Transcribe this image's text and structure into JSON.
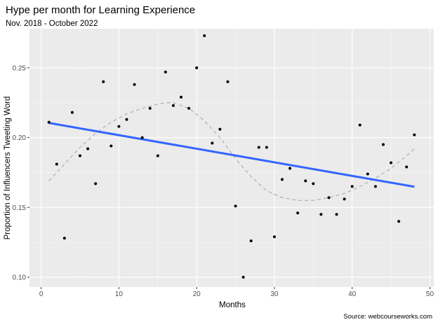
{
  "chart_data": {
    "type": "scatter",
    "title": "Hype per month for Learning Experience",
    "subtitle": "Nov. 2018 - October 2022",
    "xlabel": "Months",
    "ylabel": "Proportion of Influencers Tweeting Word",
    "caption": "Source: webcourseworks.com",
    "xlim": [
      -1.5,
      50.5
    ],
    "ylim": [
      0.093,
      0.278
    ],
    "x_ticks": [
      0,
      10,
      20,
      30,
      40,
      50
    ],
    "x_tick_labels": [
      "0",
      "10",
      "20",
      "30",
      "40",
      "50"
    ],
    "y_ticks": [
      0.1,
      0.15,
      0.2,
      0.25
    ],
    "y_tick_labels": [
      "0.10",
      "0.15",
      "0.20",
      "0.25"
    ],
    "grid": true,
    "points": {
      "x": [
        1,
        2,
        3,
        4,
        5,
        6,
        7,
        8,
        9,
        10,
        11,
        12,
        13,
        14,
        15,
        16,
        17,
        18,
        19,
        20,
        21,
        22,
        23,
        24,
        25,
        26,
        27,
        28,
        29,
        30,
        31,
        32,
        33,
        34,
        35,
        36,
        37,
        38,
        39,
        40,
        41,
        42,
        43,
        44,
        45,
        46,
        47,
        48
      ],
      "y": [
        0.211,
        0.181,
        0.128,
        0.218,
        0.187,
        0.192,
        0.167,
        0.24,
        0.194,
        0.208,
        0.213,
        0.238,
        0.2,
        0.221,
        0.187,
        0.247,
        0.223,
        0.229,
        0.221,
        0.25,
        0.273,
        0.196,
        0.206,
        0.24,
        0.151,
        0.1,
        0.126,
        0.193,
        0.193,
        0.129,
        0.17,
        0.178,
        0.146,
        0.169,
        0.167,
        0.145,
        0.157,
        0.145,
        0.156,
        0.165,
        0.209,
        0.174,
        0.165,
        0.195,
        0.182,
        0.14,
        0.179,
        0.202
      ],
      "color": "#000000"
    },
    "linear_fit": {
      "x": [
        1,
        48
      ],
      "y": [
        0.2105,
        0.1648
      ],
      "color": "#3366ff"
    },
    "smooth_fit": {
      "x": [
        1,
        3,
        5,
        7,
        9,
        11,
        13,
        15,
        16,
        17,
        19,
        21,
        23,
        25,
        27,
        29,
        31,
        33,
        35,
        37,
        39,
        41,
        43,
        45,
        47,
        48
      ],
      "y": [
        0.169,
        0.181,
        0.193,
        0.203,
        0.211,
        0.217,
        0.221,
        0.224,
        0.225,
        0.225,
        0.221,
        0.212,
        0.2,
        0.185,
        0.172,
        0.162,
        0.157,
        0.155,
        0.155,
        0.157,
        0.16,
        0.165,
        0.171,
        0.178,
        0.187,
        0.192
      ],
      "color": "#b3b3b3"
    },
    "panel_background": "#ebebeb"
  }
}
